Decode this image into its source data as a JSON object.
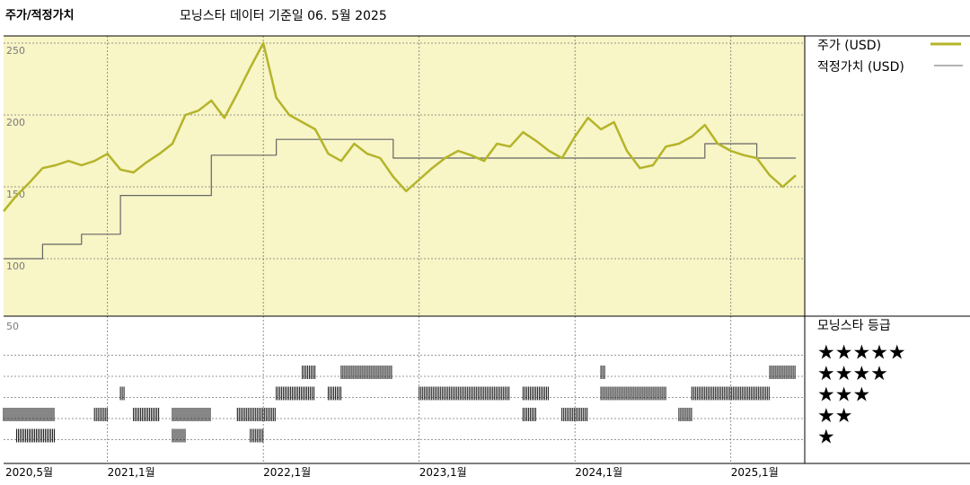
{
  "chart_data": {
    "type": "line",
    "title": "주가/적정가치",
    "subtitle": "모닝스타 데이터 기준일 06. 5월 2025",
    "x_ticks": [
      "2020,5월",
      "2021,1월",
      "2022,1월",
      "2023,1월",
      "2024,1월",
      "2025,1월"
    ],
    "x_range": [
      "2020-05",
      "2025-06"
    ],
    "y_ticks": [
      250,
      200,
      150,
      100
    ],
    "ylim": [
      60,
      255
    ],
    "series": [
      {
        "name": "주가 (USD)",
        "color": "#b4b42a",
        "points": [
          [
            "2020-05",
            133
          ],
          [
            "2020-06",
            144
          ],
          [
            "2020-07",
            153
          ],
          [
            "2020-08",
            163
          ],
          [
            "2020-09",
            165
          ],
          [
            "2020-10",
            168
          ],
          [
            "2020-11",
            165
          ],
          [
            "2020-12",
            168
          ],
          [
            "2021-01",
            173
          ],
          [
            "2021-02",
            162
          ],
          [
            "2021-03",
            160
          ],
          [
            "2021-04",
            167
          ],
          [
            "2021-05",
            173
          ],
          [
            "2021-06",
            180
          ],
          [
            "2021-07",
            200
          ],
          [
            "2021-08",
            203
          ],
          [
            "2021-09",
            210
          ],
          [
            "2021-10",
            198
          ],
          [
            "2021-11",
            215
          ],
          [
            "2021-12",
            233
          ],
          [
            "2022-01",
            250
          ],
          [
            "2022-02",
            212
          ],
          [
            "2022-03",
            200
          ],
          [
            "2022-04",
            195
          ],
          [
            "2022-05",
            190
          ],
          [
            "2022-06",
            173
          ],
          [
            "2022-07",
            168
          ],
          [
            "2022-08",
            180
          ],
          [
            "2022-09",
            173
          ],
          [
            "2022-10",
            170
          ],
          [
            "2022-11",
            157
          ],
          [
            "2022-12",
            147
          ],
          [
            "2023-01",
            155
          ],
          [
            "2023-02",
            163
          ],
          [
            "2023-03",
            170
          ],
          [
            "2023-04",
            175
          ],
          [
            "2023-05",
            172
          ],
          [
            "2023-06",
            168
          ],
          [
            "2023-07",
            180
          ],
          [
            "2023-08",
            178
          ],
          [
            "2023-09",
            188
          ],
          [
            "2023-10",
            182
          ],
          [
            "2023-11",
            175
          ],
          [
            "2023-12",
            170
          ],
          [
            "2024-01",
            185
          ],
          [
            "2024-02",
            198
          ],
          [
            "2024-03",
            190
          ],
          [
            "2024-04",
            195
          ],
          [
            "2024-05",
            175
          ],
          [
            "2024-06",
            163
          ],
          [
            "2024-07",
            165
          ],
          [
            "2024-08",
            178
          ],
          [
            "2024-09",
            180
          ],
          [
            "2024-10",
            185
          ],
          [
            "2024-11",
            193
          ],
          [
            "2024-12",
            180
          ],
          [
            "2025-01",
            175
          ],
          [
            "2025-02",
            172
          ],
          [
            "2025-03",
            170
          ],
          [
            "2025-04",
            158
          ],
          [
            "2025-05",
            150
          ],
          [
            "2025-06",
            158
          ]
        ]
      },
      {
        "name": "적정가치 (USD)",
        "color": "#666666",
        "points": [
          [
            "2020-05",
            100
          ],
          [
            "2020-08",
            100
          ],
          [
            "2020-08",
            110
          ],
          [
            "2020-11",
            110
          ],
          [
            "2020-11",
            117
          ],
          [
            "2021-02",
            117
          ],
          [
            "2021-02",
            144
          ],
          [
            "2021-09",
            144
          ],
          [
            "2021-09",
            172
          ],
          [
            "2022-02",
            172
          ],
          [
            "2022-02",
            183
          ],
          [
            "2022-11",
            183
          ],
          [
            "2022-11",
            170
          ],
          [
            "2024-11",
            170
          ],
          [
            "2024-11",
            180
          ],
          [
            "2025-03",
            180
          ],
          [
            "2025-03",
            170
          ],
          [
            "2025-06",
            170
          ]
        ]
      }
    ],
    "rating": {
      "max_label": "50",
      "title": "모닝스타 등급",
      "stars_labels": [
        "★★★★★",
        "★★★★",
        "★★★",
        "★★",
        "★"
      ],
      "periods": [
        {
          "stars": 2,
          "start": "2020-05",
          "end": "2020-09"
        },
        {
          "stars": 1,
          "start": "2020-06",
          "end": "2020-09"
        },
        {
          "stars": 2,
          "start": "2020-12",
          "end": "2021-01"
        },
        {
          "stars": 3,
          "start": "2021-02",
          "end": "2021-02"
        },
        {
          "stars": 2,
          "start": "2021-03",
          "end": "2021-05"
        },
        {
          "stars": 2,
          "start": "2021-06",
          "end": "2021-09"
        },
        {
          "stars": 1,
          "start": "2021-06",
          "end": "2021-07"
        },
        {
          "stars": 2,
          "start": "2021-11",
          "end": "2022-02"
        },
        {
          "stars": 1,
          "start": "2021-12",
          "end": "2022-01"
        },
        {
          "stars": 3,
          "start": "2022-02",
          "end": "2022-05"
        },
        {
          "stars": 4,
          "start": "2022-04",
          "end": "2022-05"
        },
        {
          "stars": 3,
          "start": "2022-06",
          "end": "2022-07"
        },
        {
          "stars": 4,
          "start": "2022-07",
          "end": "2022-11"
        },
        {
          "stars": 3,
          "start": "2023-01",
          "end": "2023-08"
        },
        {
          "stars": 3,
          "start": "2023-09",
          "end": "2023-11"
        },
        {
          "stars": 2,
          "start": "2023-09",
          "end": "2023-10"
        },
        {
          "stars": 2,
          "start": "2023-12",
          "end": "2024-02"
        },
        {
          "stars": 4,
          "start": "2024-03",
          "end": "2024-03"
        },
        {
          "stars": 3,
          "start": "2024-03",
          "end": "2024-08"
        },
        {
          "stars": 2,
          "start": "2024-09",
          "end": "2024-10"
        },
        {
          "stars": 3,
          "start": "2024-10",
          "end": "2025-04"
        },
        {
          "stars": 4,
          "start": "2025-04",
          "end": "2025-06"
        }
      ]
    }
  }
}
